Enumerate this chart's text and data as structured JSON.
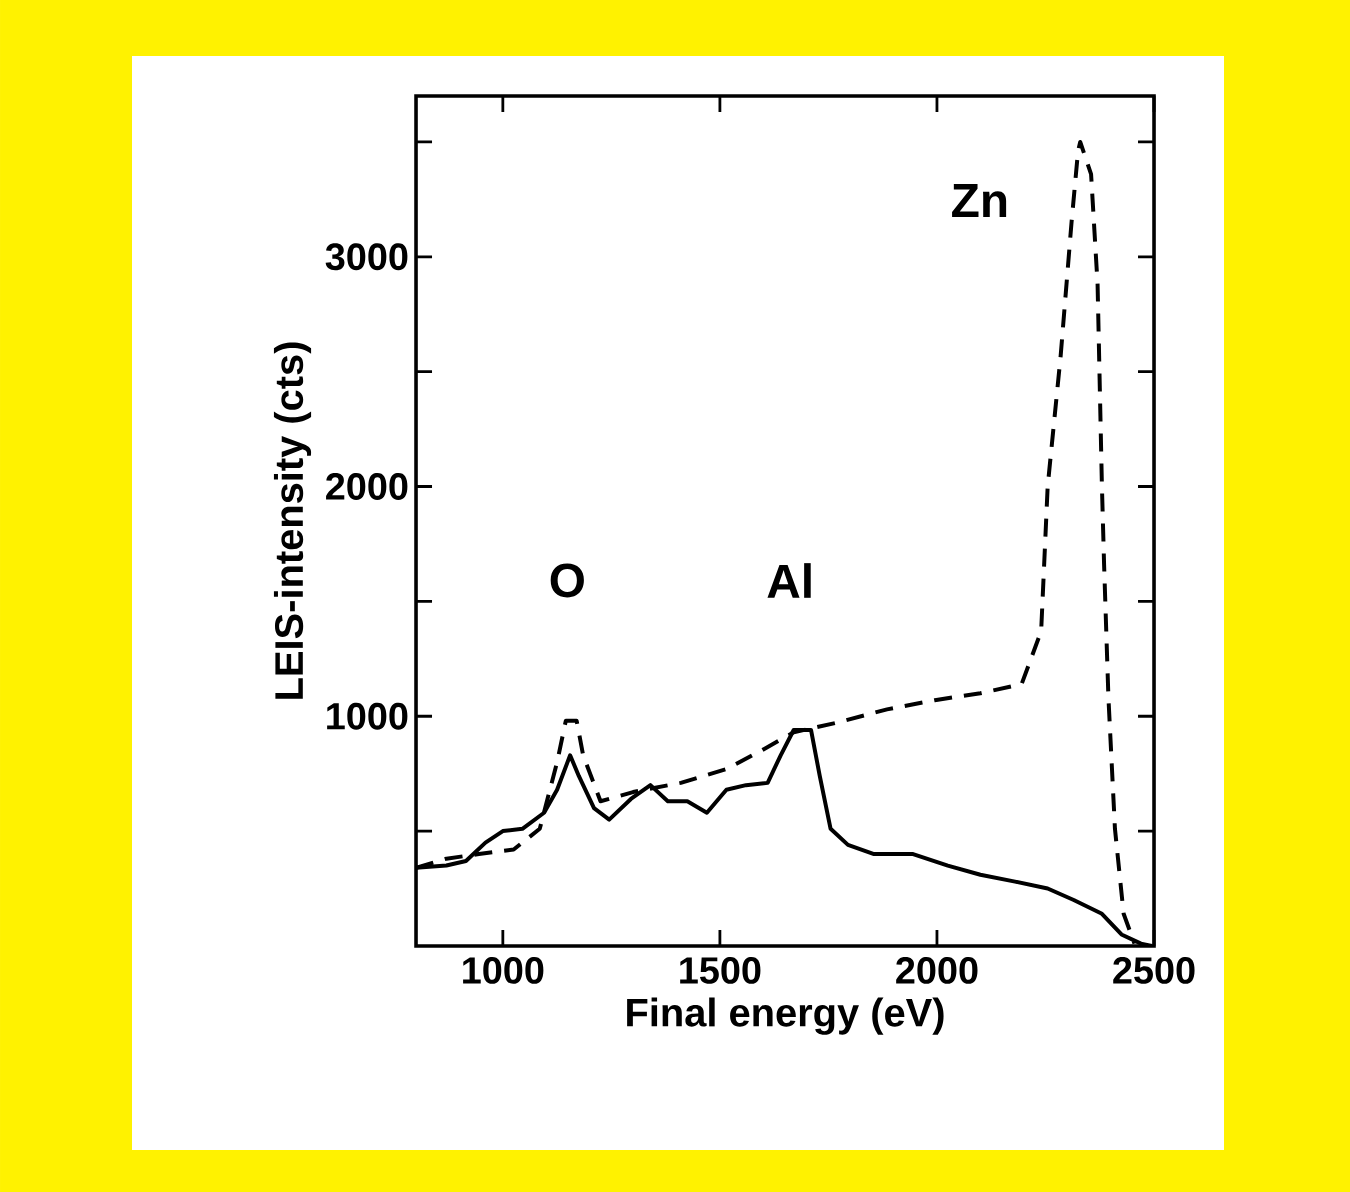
{
  "chart_data": {
    "type": "line",
    "xlabel": "Final energy (eV)",
    "ylabel": "LEIS-intensity (cts)",
    "xlim": [
      800,
      2500
    ],
    "ylim": [
      0,
      3700
    ],
    "xticks": [
      1000,
      1500,
      2000,
      2500
    ],
    "yticks": [
      {
        "value": 500,
        "label": null
      },
      1000,
      {
        "value": 1500,
        "label": null
      },
      2000,
      {
        "value": 2500,
        "label": null
      },
      3000,
      {
        "value": 3500,
        "label": null
      }
    ],
    "marker": "none",
    "annotations": [
      "O",
      "Al",
      "Zn"
    ],
    "series": [
      {
        "color": "#000000",
        "line_style": "solid",
        "x": [
          800,
          870,
          915,
          960,
          1000,
          1045,
          1095,
          1125,
          1155,
          1175,
          1210,
          1245,
          1295,
          1340,
          1380,
          1425,
          1470,
          1515,
          1560,
          1610,
          1640,
          1670,
          1710,
          1730,
          1755,
          1795,
          1855,
          1945,
          2025,
          2100,
          2180,
          2255,
          2315,
          2380,
          2425,
          2470,
          2495
        ],
        "values": [
          340,
          350,
          370,
          450,
          500,
          510,
          580,
          680,
          830,
          740,
          600,
          550,
          640,
          700,
          630,
          630,
          580,
          680,
          700,
          710,
          830,
          940,
          940,
          740,
          510,
          440,
          400,
          400,
          350,
          310,
          280,
          250,
          200,
          140,
          50,
          10,
          0
        ]
      },
      {
        "color": "#000000",
        "line_style": "dashed",
        "x": [
          800,
          870,
          945,
          1025,
          1085,
          1125,
          1145,
          1170,
          1185,
          1225,
          1300,
          1410,
          1515,
          1595,
          1670,
          1765,
          1885,
          1995,
          2100,
          2195,
          2240,
          2255,
          2285,
          2310,
          2325,
          2330,
          2355,
          2370,
          2380,
          2385,
          2395,
          2410,
          2430,
          2455
        ],
        "values": [
          340,
          380,
          400,
          420,
          510,
          800,
          980,
          980,
          830,
          630,
          670,
          710,
          770,
          850,
          930,
          970,
          1030,
          1070,
          1100,
          1140,
          1370,
          2000,
          2570,
          3150,
          3460,
          3500,
          3360,
          2880,
          2000,
          1660,
          1080,
          510,
          140,
          10
        ]
      }
    ]
  }
}
